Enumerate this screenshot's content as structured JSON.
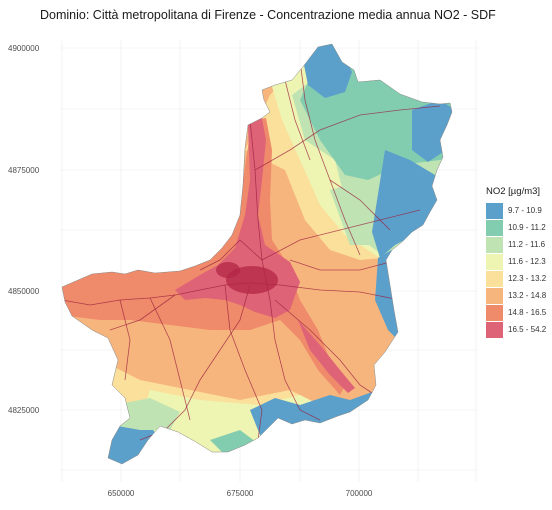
{
  "title": "Dominio: Città metropolitana di Firenze - Concentrazione media annua NO2 - SDF",
  "axes": {
    "y_ticks": [
      "4900000",
      "4875000",
      "4850000",
      "4825000"
    ],
    "x_ticks": [
      "650000",
      "675000",
      "700000"
    ]
  },
  "legend": {
    "title": "NO2 [µg/m3]",
    "items": [
      {
        "label": "9.7 - 10.9",
        "color": "#5b9fcb"
      },
      {
        "label": "10.9 - 11.2",
        "color": "#82cdb0"
      },
      {
        "label": "11.2 - 11.6",
        "color": "#bfe3b2"
      },
      {
        "label": "11.6 - 12.3",
        "color": "#eef4b2"
      },
      {
        "label": "12.3 - 13.2",
        "color": "#fbe09b"
      },
      {
        "label": "13.2 - 14.8",
        "color": "#f7b57e"
      },
      {
        "label": "14.8 - 16.5",
        "color": "#ef8a6a"
      },
      {
        "label": "16.5 - 54.2",
        "color": "#df6377"
      }
    ]
  }
}
